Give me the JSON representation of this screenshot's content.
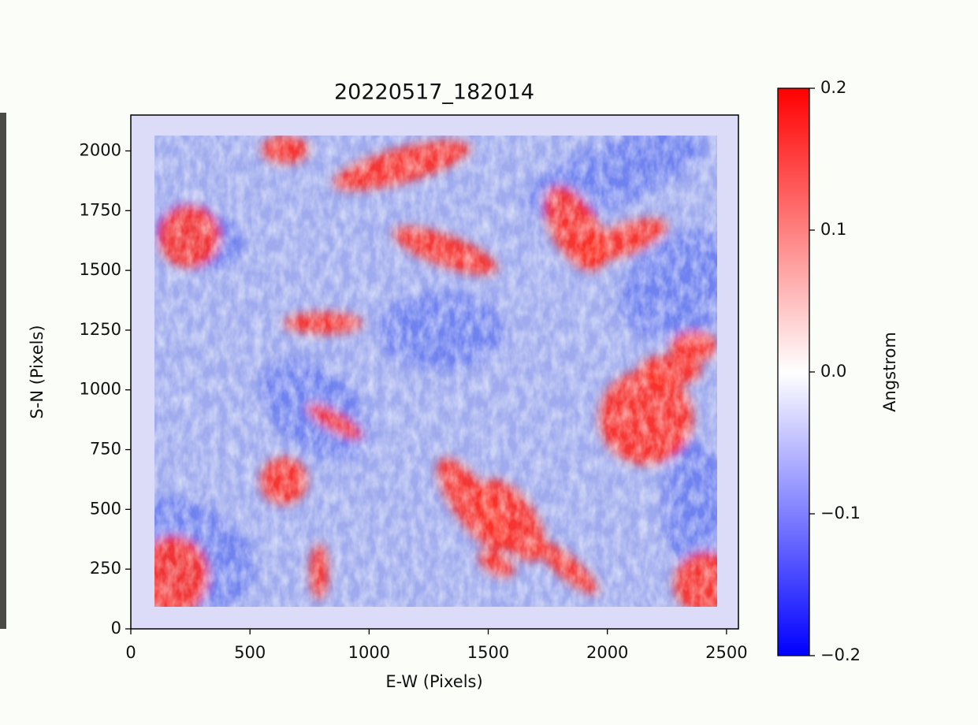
{
  "chart_data": {
    "type": "heatmap",
    "title": "20220517_182014",
    "x_label": "E-W (Pixels)",
    "y_label": "S-N (Pixels)",
    "xlim": [
      0,
      2550
    ],
    "ylim": [
      0,
      2150
    ],
    "xticks": [
      0,
      500,
      1000,
      1500,
      2000,
      2500
    ],
    "yticks": [
      0,
      250,
      500,
      750,
      1000,
      1250,
      1500,
      1750,
      2000
    ],
    "colorbar": {
      "label": "Angstrom",
      "clim": [
        -0.2,
        0.2
      ],
      "ticks": [
        {
          "value": -0.2,
          "label": "−0.2"
        },
        {
          "value": -0.1,
          "label": "−0.1"
        },
        {
          "value": 0,
          "label": "0.0"
        },
        0.1,
        0.2
      ],
      "colormap": [
        "#0000ff",
        "#ffffff",
        "#ff0000"
      ]
    }
  }
}
